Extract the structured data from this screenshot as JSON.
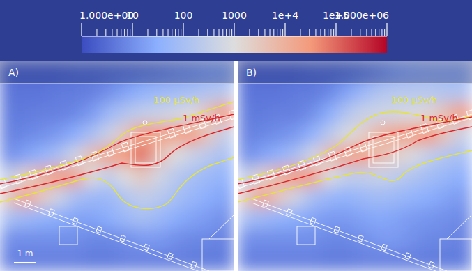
{
  "chart_data": {
    "type": "heatmap",
    "log": true,
    "colorbar": {
      "range": [
        1,
        1000000
      ],
      "ticks": [
        {
          "value": 1,
          "label": "1.000e+00"
        },
        10,
        100,
        1000,
        {
          "value": 10000,
          "label": "1e+4"
        },
        {
          "value": 100000,
          "label": "1e+5"
        },
        {
          "value": 1000000,
          "label": "1.000e+06"
        }
      ]
    },
    "contours": [
      {
        "label": "100 µSv/h",
        "color": "#e4e43c"
      },
      {
        "label": "1 mSv/h",
        "color": "#d8262a"
      }
    ],
    "scale_bar_label": "1 m",
    "panels": [
      {
        "label": "A)",
        "cells": [
          [
            3,
            3,
            3,
            3,
            4,
            4,
            5,
            6,
            8,
            10,
            15,
            20,
            30,
            40
          ],
          [
            4,
            4,
            4,
            5,
            5,
            6,
            10,
            20,
            40,
            60,
            80,
            100,
            150,
            200
          ],
          [
            5,
            5,
            6,
            6,
            8,
            15,
            60,
            150,
            300,
            400,
            600,
            1000,
            5000,
            30000
          ],
          [
            6,
            8,
            10,
            15,
            30,
            100,
            400,
            3000,
            30000,
            20000,
            20000,
            30000,
            3000,
            300
          ],
          [
            10,
            20,
            40,
            100,
            500,
            5000,
            20000,
            30000,
            100000,
            5000,
            1000,
            400,
            200,
            100
          ],
          [
            300,
            2000,
            10000,
            30000,
            20000,
            1000,
            300,
            1000,
            3000,
            600,
            200,
            100,
            60,
            40
          ],
          [
            3000,
            20000,
            3000,
            500,
            100,
            60,
            60,
            150,
            300,
            200,
            100,
            50,
            30,
            20
          ],
          [
            100,
            60,
            40,
            30,
            20,
            20,
            30,
            60,
            100,
            60,
            30,
            20,
            15,
            10
          ],
          [
            10,
            10,
            10,
            10,
            10,
            8,
            8,
            10,
            15,
            15,
            10,
            8,
            8,
            6
          ],
          [
            6,
            6,
            6,
            6,
            6,
            5,
            5,
            6,
            6,
            6,
            6,
            5,
            5,
            5
          ]
        ]
      },
      {
        "label": "B)",
        "cells": [
          [
            3,
            3,
            3,
            3,
            4,
            4,
            5,
            8,
            15,
            30,
            50,
            60,
            60,
            60
          ],
          [
            4,
            4,
            4,
            5,
            5,
            8,
            20,
            60,
            150,
            200,
            200,
            200,
            150,
            150
          ],
          [
            5,
            5,
            6,
            6,
            10,
            30,
            150,
            400,
            500,
            600,
            800,
            1500,
            6000,
            30000
          ],
          [
            6,
            8,
            10,
            15,
            40,
            200,
            800,
            2000,
            10000,
            20000,
            25000,
            30000,
            3000,
            400
          ],
          [
            10,
            20,
            40,
            100,
            600,
            6000,
            20000,
            20000,
            5000,
            2000,
            800,
            300,
            150,
            100
          ],
          [
            300,
            2000,
            10000,
            30000,
            20000,
            1000,
            300,
            300,
            400,
            250,
            150,
            80,
            50,
            30
          ],
          [
            3000,
            20000,
            3000,
            500,
            100,
            50,
            40,
            60,
            80,
            60,
            40,
            30,
            20,
            15
          ],
          [
            100,
            60,
            40,
            30,
            20,
            15,
            15,
            20,
            25,
            20,
            15,
            12,
            10,
            8
          ],
          [
            10,
            10,
            10,
            10,
            10,
            8,
            8,
            10,
            15,
            15,
            10,
            8,
            8,
            6
          ],
          [
            6,
            6,
            6,
            6,
            6,
            5,
            5,
            6,
            6,
            6,
            6,
            5,
            5,
            5
          ]
        ]
      }
    ]
  }
}
